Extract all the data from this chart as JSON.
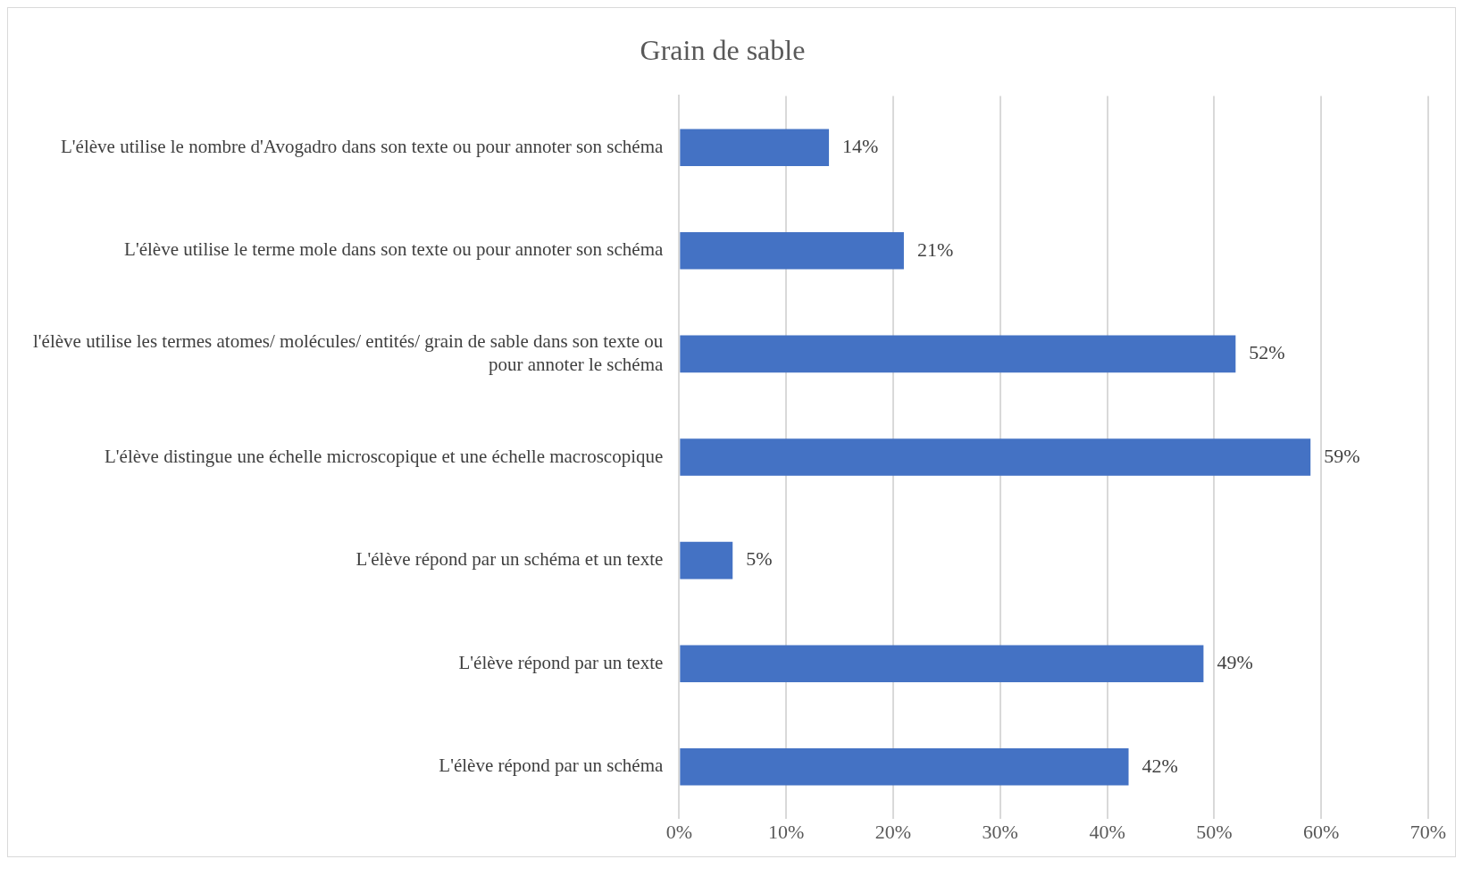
{
  "chart_data": {
    "type": "bar",
    "orientation": "horizontal",
    "title": "Grain de sable",
    "categories": [
      "L'élève utilise le nombre d'Avogadro dans son texte ou pour annoter son schéma",
      "L'élève utilise le terme mole dans son texte ou pour annoter son schéma",
      "l'élève utilise les termes atomes/ molécules/ entités/ grain de sable dans son texte ou pour annoter le schéma",
      "L'élève distingue une échelle microscopique et une échelle macroscopique",
      "L'élève répond par un schéma et un texte",
      "L'élève répond par un texte",
      "L'élève répond par un schéma"
    ],
    "values": [
      14,
      21,
      52,
      59,
      5,
      49,
      42
    ],
    "value_labels": [
      "14%",
      "21%",
      "52%",
      "59%",
      "5%",
      "49%",
      "42%"
    ],
    "color": "#4472c4",
    "xlim": [
      0,
      70
    ],
    "xticks": [
      {
        "value": 0,
        "label": "0%"
      },
      {
        "value": 10,
        "label": "10%"
      },
      {
        "value": 20,
        "label": "20%"
      },
      {
        "value": 30,
        "label": "30%"
      },
      {
        "value": 40,
        "label": "40%"
      },
      {
        "value": 50,
        "label": "50%"
      },
      {
        "value": 60,
        "label": "60%"
      },
      {
        "value": 70,
        "label": "70%"
      }
    ],
    "grid": "x",
    "legend": false
  }
}
